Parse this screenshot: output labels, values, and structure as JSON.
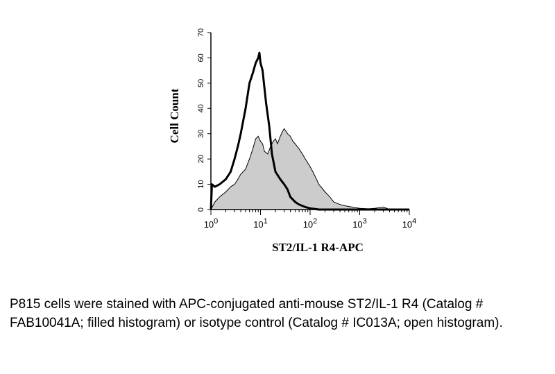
{
  "chart_data": {
    "type": "area",
    "xlabel": "ST2/IL-1 R4-APC",
    "ylabel": "Cell Count",
    "xscale": "log",
    "xlim": [
      1,
      10000
    ],
    "ylim": [
      0,
      70
    ],
    "xticks": [
      {
        "value": 1,
        "base": "10",
        "exp": "0"
      },
      {
        "value": 10,
        "base": "10",
        "exp": "1"
      },
      {
        "value": 100,
        "base": "10",
        "exp": "2"
      },
      {
        "value": 1000,
        "base": "10",
        "exp": "3"
      },
      {
        "value": 10000,
        "base": "10",
        "exp": "4"
      }
    ],
    "yticks": [
      "0",
      "10",
      "20",
      "30",
      "40",
      "50",
      "60",
      "70"
    ],
    "grid": false,
    "series": [
      {
        "role": "filled",
        "fill": "#cccccc",
        "stroke": "#000000",
        "points": [
          [
            1,
            0
          ],
          [
            1.2,
            3
          ],
          [
            1.5,
            5
          ],
          [
            2,
            7
          ],
          [
            2.5,
            9
          ],
          [
            3,
            10
          ],
          [
            3.5,
            12
          ],
          [
            4,
            14
          ],
          [
            5,
            16
          ],
          [
            6,
            20
          ],
          [
            7,
            24
          ],
          [
            8,
            28
          ],
          [
            9,
            29
          ],
          [
            10,
            27
          ],
          [
            11,
            26
          ],
          [
            12,
            23
          ],
          [
            14,
            22
          ],
          [
            16,
            25
          ],
          [
            18,
            27
          ],
          [
            20,
            28
          ],
          [
            22,
            26
          ],
          [
            25,
            29
          ],
          [
            28,
            31
          ],
          [
            30,
            32
          ],
          [
            35,
            30
          ],
          [
            40,
            29
          ],
          [
            45,
            27
          ],
          [
            50,
            26
          ],
          [
            60,
            24
          ],
          [
            70,
            22
          ],
          [
            80,
            20
          ],
          [
            100,
            17
          ],
          [
            120,
            14
          ],
          [
            150,
            10
          ],
          [
            200,
            7
          ],
          [
            250,
            5
          ],
          [
            300,
            3
          ],
          [
            400,
            2
          ],
          [
            500,
            1.5
          ],
          [
            700,
            1
          ],
          [
            1000,
            0.5
          ],
          [
            1500,
            0.3
          ],
          [
            2000,
            0.5
          ],
          [
            3000,
            1
          ],
          [
            3500,
            0.5
          ],
          [
            4000,
            0
          ],
          [
            10000,
            0
          ]
        ]
      },
      {
        "role": "open",
        "fill": "none",
        "stroke": "#000000",
        "points": [
          [
            1,
            0
          ],
          [
            1.05,
            10
          ],
          [
            1.2,
            9
          ],
          [
            1.5,
            10
          ],
          [
            2,
            12
          ],
          [
            2.5,
            15
          ],
          [
            3,
            20
          ],
          [
            3.5,
            25
          ],
          [
            4,
            30
          ],
          [
            5,
            40
          ],
          [
            6,
            50
          ],
          [
            7,
            54
          ],
          [
            8,
            58
          ],
          [
            9,
            60
          ],
          [
            9.5,
            62
          ],
          [
            10,
            58
          ],
          [
            11,
            55
          ],
          [
            12,
            48
          ],
          [
            13,
            42
          ],
          [
            15,
            33
          ],
          [
            17,
            22
          ],
          [
            20,
            15
          ],
          [
            25,
            12
          ],
          [
            30,
            10
          ],
          [
            35,
            8
          ],
          [
            40,
            5
          ],
          [
            50,
            3
          ],
          [
            60,
            2
          ],
          [
            80,
            1
          ],
          [
            100,
            0.5
          ],
          [
            150,
            0
          ],
          [
            10000,
            0
          ]
        ]
      }
    ]
  },
  "caption": "P815 cells were stained with APC-conjugated anti-mouse ST2/IL-1 R4 (Catalog # FAB10041A; filled histogram) or isotype control (Catalog # IC013A; open histogram)."
}
